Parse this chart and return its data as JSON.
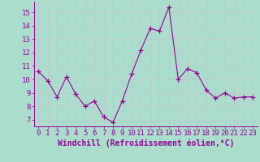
{
  "x": [
    0,
    1,
    2,
    3,
    4,
    5,
    6,
    7,
    8,
    9,
    10,
    11,
    12,
    13,
    14,
    15,
    16,
    17,
    18,
    19,
    20,
    21,
    22,
    23
  ],
  "y": [
    10.6,
    9.9,
    8.7,
    10.2,
    8.9,
    8.0,
    8.4,
    7.2,
    6.8,
    8.4,
    10.4,
    12.2,
    13.8,
    13.6,
    15.4,
    10.0,
    10.8,
    10.5,
    9.2,
    8.6,
    9.0,
    8.6,
    8.7,
    8.7
  ],
  "line_color": "#990099",
  "marker": "+",
  "marker_color": "#990099",
  "bg_color": "#aaddcc",
  "grid_color": "#bbcccc",
  "xlabel": "Windchill (Refroidissement éolien,°C)",
  "xlabel_color": "#990099",
  "tick_color": "#990099",
  "axis_color": "#990099",
  "xlim": [
    -0.5,
    23.5
  ],
  "ylim": [
    6.5,
    15.8
  ],
  "yticks": [
    7,
    8,
    9,
    10,
    11,
    12,
    13,
    14,
    15
  ],
  "xticks": [
    0,
    1,
    2,
    3,
    4,
    5,
    6,
    7,
    8,
    9,
    10,
    11,
    12,
    13,
    14,
    15,
    16,
    17,
    18,
    19,
    20,
    21,
    22,
    23
  ],
  "font_size": 6.5,
  "label_font_size": 7
}
